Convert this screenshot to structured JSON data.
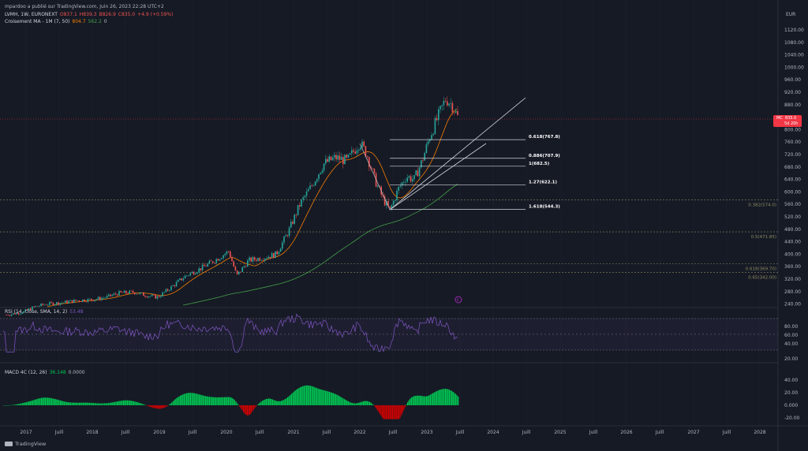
{
  "header": {
    "publisher": "mpardoo a publié sur TradingView.com, Juin 26, 2023 22:28 UTC+2",
    "symbol_line": {
      "symbol": "LVMH, 1W, EURONEXT",
      "open": "O837.1",
      "high": "H839.3",
      "low": "B826.9",
      "close": "C835.0",
      "change": "+4.9 (+0.59%)"
    },
    "indicator_line": {
      "name": "Croisement MA - 1M (7, 50)",
      "v1": "804.7",
      "v2": "562.2",
      "v3": "0"
    }
  },
  "currency": "EUR",
  "price_axis": [
    "1120.00",
    "1080.00",
    "1040.00",
    "1000.00",
    "960.00",
    "920.00",
    "880.00",
    "800.00",
    "760.00",
    "720.00",
    "680.00",
    "640.00",
    "600.00",
    "560.00",
    "520.00",
    "480.00",
    "440.00",
    "400.00",
    "360.00",
    "320.00",
    "280.00",
    "240.00"
  ],
  "price_label": {
    "ticker": "MC",
    "price": "835.0",
    "countdown": "5d 20h"
  },
  "fib_upper": [
    {
      "label": "0.618(767.8)",
      "value": 767.8
    },
    {
      "label": "0.886(707.9)",
      "value": 707.9
    },
    {
      "label": "1(682.5)",
      "value": 682.5
    },
    {
      "label": "1.27(622.1)",
      "value": 622.1
    },
    {
      "label": "1.618(544.3)",
      "value": 544.3
    }
  ],
  "fib_right": [
    {
      "label": "0.382(574.0)",
      "value": 574.0
    },
    {
      "label": "0.5(471.85)",
      "value": 471.85
    },
    {
      "label": "0.618(369.70)",
      "value": 369.7
    },
    {
      "label": "0.65(342.00)",
      "value": 342.0
    }
  ],
  "rsi": {
    "title": "RSI (14, close, SMA, 14, 2)",
    "value": "53.48",
    "axis": [
      "80.00",
      "60.00",
      "40.00",
      "20.00"
    ]
  },
  "macd": {
    "title": "MACD 4C (12, 26)",
    "v1": "36.148",
    "v2": "0.0000",
    "axis": [
      "40.00",
      "20.00",
      "0.000",
      "-20.00"
    ]
  },
  "time_axis": [
    "2017",
    "Juill",
    "2018",
    "Juill",
    "2019",
    "Juill",
    "2020",
    "Juill",
    "2021",
    "Juill",
    "2022",
    "Juill",
    "2023",
    "Juill",
    "2024",
    "Juill",
    "2025",
    "Juill",
    "2026",
    "Juill",
    "2027",
    "Juill",
    "2028"
  ],
  "brand": "TradingView",
  "colors": {
    "background": "#161a25",
    "up": "#26a69a",
    "down": "#ef5350",
    "ma_fast": "#f57c00",
    "ma_slow": "#43a047",
    "rsi": "#7e57c2",
    "macd_up": "#00c853",
    "macd_down": "#d50000",
    "price_line": "#f23645"
  }
}
